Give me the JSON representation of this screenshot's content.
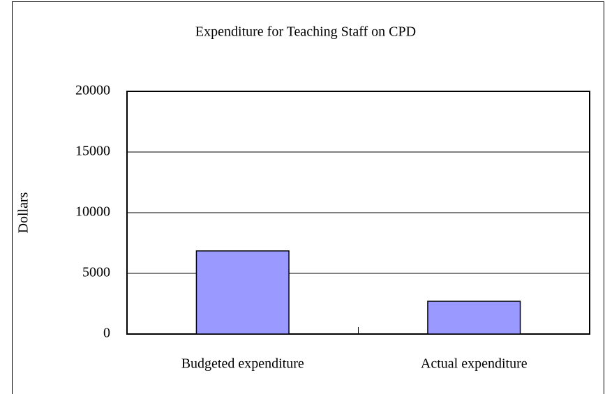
{
  "chart_data": {
    "type": "bar",
    "title": "Expenditure for Teaching Staff on CPD",
    "y_label": "Dollars",
    "categories": [
      "Budgeted expenditure",
      "Actual expenditure"
    ],
    "values": [
      6850,
      2700
    ],
    "color": "#9999ff",
    "ylim": [
      0,
      20000
    ],
    "yticks": [
      0,
      5000,
      10000,
      15000,
      20000
    ],
    "grid": true
  }
}
